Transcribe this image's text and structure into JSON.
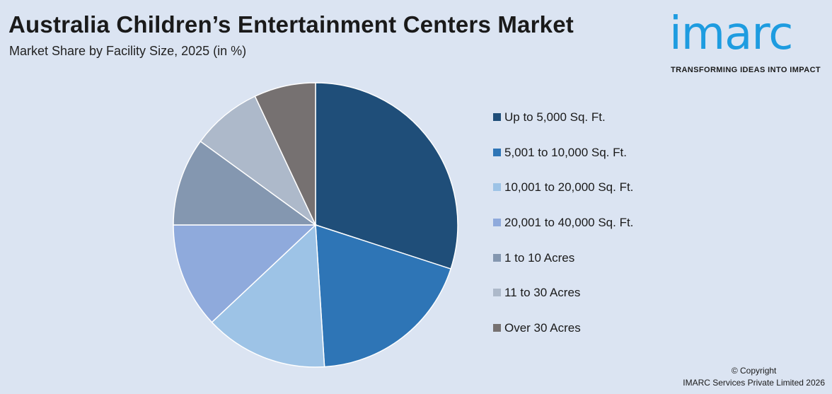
{
  "header": {
    "title": "Australia Children’s Entertainment Centers Market",
    "subtitle": "Market Share by Facility Size, 2025 (in %)"
  },
  "logo": {
    "word": "imarc",
    "tagline": "TRANSFORMING IDEAS INTO IMPACT",
    "color": "#1e9ce0"
  },
  "footer": {
    "line1": "© Copyright",
    "line2": "IMARC Services Private Limited 2026"
  },
  "chart_data": {
    "type": "pie",
    "title": "Australia Children’s Entertainment Centers Market",
    "subtitle": "Market Share by Facility Size, 2025 (in %)",
    "legend_position": "right",
    "categories": [
      "Up to 5,000 Sq. Ft.",
      "5,001 to 10,000 Sq. Ft.",
      "10,001 to 20,000 Sq. Ft.",
      "20,001 to 40,000 Sq. Ft.",
      "1 to 10 Acres",
      "11 to 30 Acres",
      "Over 30 Acres"
    ],
    "values": [
      30,
      19,
      14,
      12,
      10,
      8,
      7
    ],
    "colors": [
      "#1f4e79",
      "#2e75b6",
      "#9dc3e6",
      "#8faadc",
      "#8497b0",
      "#adb9ca",
      "#767171"
    ]
  }
}
